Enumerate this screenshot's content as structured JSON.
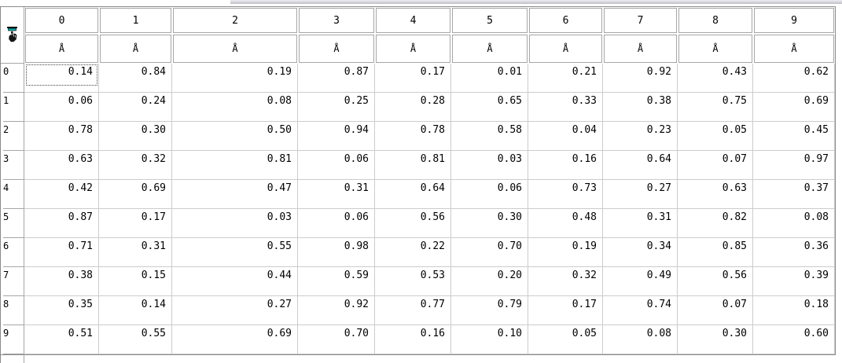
{
  "table": {
    "corner_icon": "hand-pointer-icon",
    "column_headers": [
      "0",
      "1",
      "2",
      "3",
      "4",
      "5",
      "6",
      "7",
      "8",
      "9"
    ],
    "unit_row": [
      "Å",
      "Å",
      "Å",
      "Å",
      "Å",
      "Å",
      "Å",
      "Å",
      "Å",
      "Å"
    ],
    "row_headers": [
      "0",
      "1",
      "2",
      "3",
      "4",
      "5",
      "6",
      "7",
      "8",
      "9"
    ],
    "rows": [
      [
        "0.14",
        "0.84",
        "0.19",
        "0.87",
        "0.17",
        "0.01",
        "0.21",
        "0.92",
        "0.43",
        "0.62"
      ],
      [
        "0.06",
        "0.24",
        "0.08",
        "0.25",
        "0.28",
        "0.65",
        "0.33",
        "0.38",
        "0.75",
        "0.69"
      ],
      [
        "0.78",
        "0.30",
        "0.50",
        "0.94",
        "0.78",
        "0.58",
        "0.04",
        "0.23",
        "0.05",
        "0.45"
      ],
      [
        "0.63",
        "0.32",
        "0.81",
        "0.06",
        "0.81",
        "0.03",
        "0.16",
        "0.64",
        "0.07",
        "0.97"
      ],
      [
        "0.42",
        "0.69",
        "0.47",
        "0.31",
        "0.64",
        "0.06",
        "0.73",
        "0.27",
        "0.63",
        "0.37"
      ],
      [
        "0.87",
        "0.17",
        "0.03",
        "0.06",
        "0.56",
        "0.30",
        "0.48",
        "0.31",
        "0.82",
        "0.08"
      ],
      [
        "0.71",
        "0.31",
        "0.55",
        "0.98",
        "0.22",
        "0.70",
        "0.19",
        "0.34",
        "0.85",
        "0.36"
      ],
      [
        "0.38",
        "0.15",
        "0.44",
        "0.59",
        "0.53",
        "0.20",
        "0.32",
        "0.49",
        "0.56",
        "0.39"
      ],
      [
        "0.35",
        "0.14",
        "0.27",
        "0.92",
        "0.77",
        "0.79",
        "0.17",
        "0.74",
        "0.07",
        "0.18"
      ],
      [
        "0.51",
        "0.55",
        "0.69",
        "0.70",
        "0.16",
        "0.10",
        "0.05",
        "0.08",
        "0.30",
        "0.60"
      ]
    ],
    "selected_cell": {
      "row": 0,
      "col": 0,
      "value": "0.14"
    }
  },
  "colors": {
    "icon_accent_teal": "#00AAAA",
    "grid_line": "#cccccc",
    "header_border": "#a6a6a6",
    "outer_border": "#8a8a8a",
    "selection_dotted": "#444444",
    "panel_edge_gray": "#bfbfc7"
  }
}
